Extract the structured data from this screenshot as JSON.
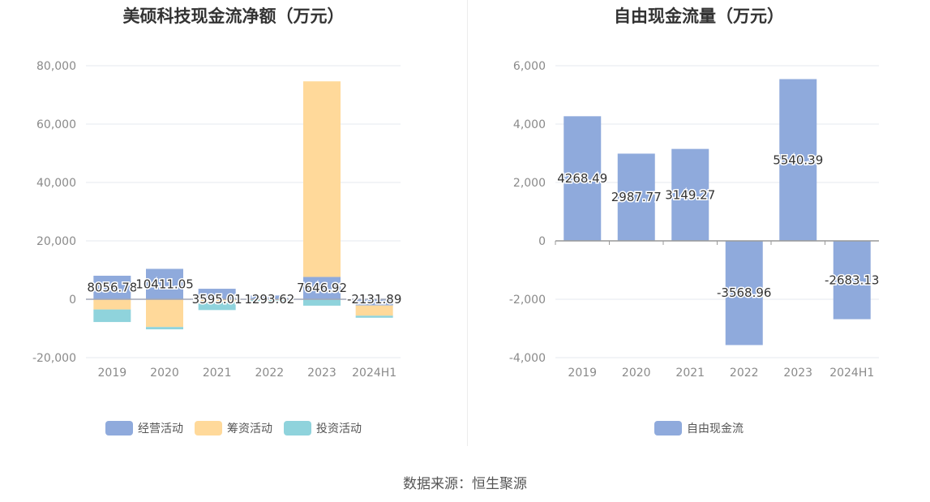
{
  "colors": {
    "operating": "#8faadc",
    "financing": "#ffd99a",
    "investing": "#8fd3dc",
    "free_cash_flow": "#8faadc"
  },
  "source": "数据来源：恒生聚源",
  "chart_data": [
    {
      "type": "bar",
      "stacked": true,
      "title": "美硕科技现金流净额（万元）",
      "categories": [
        "2019",
        "2020",
        "2021",
        "2022",
        "2023",
        "2024H1"
      ],
      "series": [
        {
          "name": "经营活动",
          "color": "#8faadc",
          "values": [
            8056.78,
            10411.05,
            3595.01,
            1293.62,
            7646.92,
            -2131.89
          ]
        },
        {
          "name": "筹资活动",
          "color": "#ffd99a",
          "values": [
            -3500,
            -9500,
            -1000,
            -300,
            67000,
            -3500
          ]
        },
        {
          "name": "投资活动",
          "color": "#8fd3dc",
          "values": [
            -4300,
            -800,
            -2700,
            -600,
            -2200,
            -700
          ]
        }
      ],
      "data_labels": [
        "8056.78",
        "10411.05",
        "3595.01",
        "1293.62",
        "7646.92",
        "-2131.89"
      ],
      "ylim": [
        -20000,
        80000
      ],
      "yticks": [
        80000,
        60000,
        40000,
        20000,
        0,
        -20000
      ],
      "ytick_labels": [
        "80,000",
        "60,000",
        "40,000",
        "20,000",
        "0",
        "-20,000"
      ],
      "xlabel": "",
      "ylabel": "",
      "grid": true,
      "legend": "bottom"
    },
    {
      "type": "bar",
      "title": "自由现金流量（万元）",
      "categories": [
        "2019",
        "2020",
        "2021",
        "2022",
        "2023",
        "2024H1"
      ],
      "series": [
        {
          "name": "自由现金流",
          "color": "#8faadc",
          "values": [
            4268.49,
            2987.77,
            3149.27,
            -3568.96,
            5540.39,
            -2683.13
          ]
        }
      ],
      "data_labels": [
        "4268.49",
        "2987.77",
        "3149.27",
        "-3568.96",
        "5540.39",
        "-2683.13"
      ],
      "ylim": [
        -4000,
        6000
      ],
      "yticks": [
        6000,
        4000,
        2000,
        0,
        -2000,
        -4000
      ],
      "ytick_labels": [
        "6,000",
        "4,000",
        "2,000",
        "0",
        "-2,000",
        "-4,000"
      ],
      "xlabel": "",
      "ylabel": "",
      "grid": true,
      "legend": "bottom"
    }
  ]
}
